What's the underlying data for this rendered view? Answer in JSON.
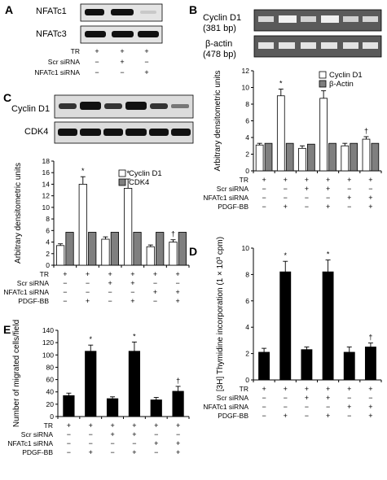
{
  "panels": {
    "A": {
      "label": "A",
      "blots": [
        "NFATc1",
        "NFATc3"
      ],
      "rows": [
        {
          "name": "TR",
          "signs": [
            "+",
            "+",
            "+"
          ]
        },
        {
          "name": "Scr siRNA",
          "signs": [
            "−",
            "+",
            "−"
          ]
        },
        {
          "name": "NFATc1 siRNA",
          "signs": [
            "−",
            "−",
            "+"
          ]
        }
      ]
    },
    "B": {
      "label": "B",
      "blots": [
        "Cyclin D1",
        "(381 bp)",
        "β-actin",
        "(478 bp)"
      ]
    },
    "C": {
      "label": "C",
      "blots": [
        "Cyclin D1",
        "CDK4"
      ]
    },
    "D": {
      "label": "D"
    },
    "E": {
      "label": "E"
    }
  },
  "treatment_rows": [
    {
      "name": "TR",
      "signs": [
        "+",
        "+",
        "+",
        "+",
        "+",
        "+"
      ]
    },
    {
      "name": "Scr siRNA",
      "signs": [
        "−",
        "−",
        "+",
        "+",
        "−",
        "−"
      ]
    },
    {
      "name": "NFATc1 siRNA",
      "signs": [
        "−",
        "−",
        "−",
        "−",
        "+",
        "+"
      ]
    },
    {
      "name": "PDGF-BB",
      "signs": [
        "−",
        "+",
        "−",
        "+",
        "−",
        "+"
      ]
    }
  ],
  "chart_data": [
    {
      "panel": "B",
      "type": "bar",
      "ylabel": "Arbitrary densitometric units",
      "ylim": [
        0,
        12
      ],
      "yticks": [
        0,
        2,
        4,
        6,
        8,
        10,
        12
      ],
      "series": [
        {
          "name": "Cyclin D1",
          "color": "#ffffff",
          "values": [
            3.1,
            9.0,
            2.7,
            8.7,
            3.0,
            3.8
          ],
          "errors": [
            0.2,
            0.8,
            0.3,
            0.9,
            0.3,
            0.3
          ]
        },
        {
          "name": "β-Actin",
          "color": "#7f7f7f",
          "values": [
            3.3,
            3.3,
            3.2,
            3.3,
            3.3,
            3.3
          ],
          "errors": [
            0,
            0,
            0,
            0,
            0,
            0
          ]
        }
      ],
      "marks": [
        "",
        "*",
        "",
        "*",
        "",
        "†"
      ],
      "mark_series": 0,
      "legend": "top-right"
    },
    {
      "panel": "C",
      "type": "bar",
      "ylabel": "Arbitrary densitometric units",
      "ylim": [
        0,
        18
      ],
      "yticks": [
        0,
        2,
        4,
        6,
        8,
        10,
        12,
        14,
        16,
        18
      ],
      "series": [
        {
          "name": "Cyclin D1",
          "color": "#ffffff",
          "values": [
            3.4,
            14.0,
            4.5,
            13.3,
            3.2,
            4.0
          ],
          "errors": [
            0.3,
            1.3,
            0.4,
            1.6,
            0.3,
            0.4
          ]
        },
        {
          "name": "CDK4",
          "color": "#7f7f7f",
          "values": [
            5.7,
            5.7,
            5.7,
            5.7,
            5.7,
            5.7
          ],
          "errors": [
            0,
            0,
            0,
            0,
            0,
            0
          ]
        }
      ],
      "marks": [
        "",
        "*",
        "",
        "*",
        "",
        "†"
      ],
      "mark_series": 0,
      "legend": "top-right"
    },
    {
      "panel": "D",
      "type": "bar",
      "ylabel": "[3H] Thymidine incorporation (1 × 10³ cpm)",
      "ylim": [
        0,
        10
      ],
      "yticks": [
        0,
        2,
        4,
        6,
        8,
        10
      ],
      "series": [
        {
          "color": "#000000",
          "values": [
            2.1,
            8.2,
            2.3,
            8.2,
            2.1,
            2.5
          ],
          "errors": [
            0.3,
            0.8,
            0.2,
            0.9,
            0.4,
            0.3
          ]
        }
      ],
      "marks": [
        "",
        "*",
        "",
        "*",
        "",
        "†"
      ],
      "mark_series": 0
    },
    {
      "panel": "E",
      "type": "bar",
      "ylabel": "Number of migrated cells/field",
      "ylim": [
        0,
        140
      ],
      "yticks": [
        0,
        20,
        40,
        60,
        80,
        100,
        120,
        140
      ],
      "series": [
        {
          "color": "#000000",
          "values": [
            34,
            106,
            29,
            106,
            27,
            41
          ],
          "errors": [
            4,
            10,
            3,
            15,
            4,
            8
          ]
        }
      ],
      "marks": [
        "",
        "*",
        "",
        "*",
        "",
        "†"
      ],
      "mark_series": 0
    }
  ]
}
